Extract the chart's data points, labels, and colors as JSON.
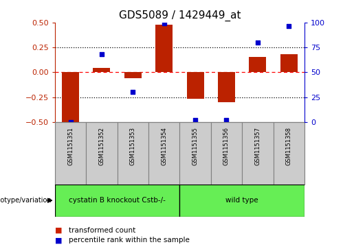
{
  "title": "GDS5089 / 1429449_at",
  "samples": [
    "GSM1151351",
    "GSM1151352",
    "GSM1151353",
    "GSM1151354",
    "GSM1151355",
    "GSM1151356",
    "GSM1151357",
    "GSM1151358"
  ],
  "transformed_count": [
    -0.5,
    0.04,
    -0.06,
    0.48,
    -0.27,
    -0.3,
    0.15,
    0.18
  ],
  "percentile_rank": [
    0,
    68,
    30,
    99,
    2,
    2,
    80,
    96
  ],
  "groups": [
    {
      "label": "cystatin B knockout Cstb-/-",
      "start": 0,
      "end": 4
    },
    {
      "label": "wild type",
      "start": 4,
      "end": 8
    }
  ],
  "green_color": "#66ee55",
  "bar_color": "#bb2200",
  "dot_color": "#0000cc",
  "ylim_left": [
    -0.5,
    0.5
  ],
  "ylim_right": [
    0,
    100
  ],
  "yticks_left": [
    -0.5,
    -0.25,
    0.0,
    0.25,
    0.5
  ],
  "yticks_right": [
    0,
    25,
    50,
    75,
    100
  ],
  "legend_labels": [
    "transformed count",
    "percentile rank within the sample"
  ],
  "legend_colors": [
    "#cc2200",
    "#0000cc"
  ],
  "genotype_label": "genotype/variation",
  "background_color": "#ffffff",
  "label_bg": "#cccccc",
  "bar_width": 0.55,
  "title_fontsize": 11,
  "tick_fontsize": 8,
  "label_fontsize": 7,
  "group_fontsize": 7.5
}
